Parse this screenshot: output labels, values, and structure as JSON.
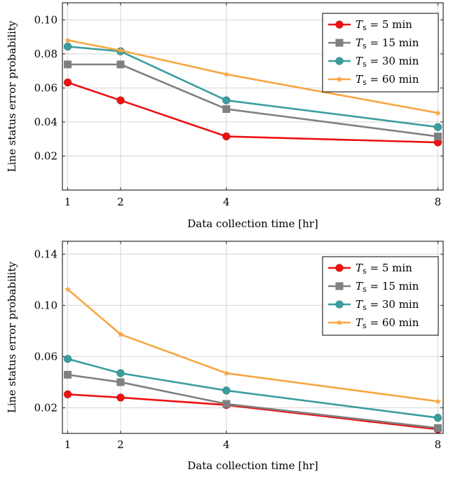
{
  "chart_data": [
    {
      "type": "line",
      "xlabel": "Data collection time [hr]",
      "ylabel": "Line status error probability",
      "xlim": [
        0.9,
        8.1
      ],
      "ylim": [
        0.0,
        0.11
      ],
      "x_ticks": [
        1,
        2,
        4,
        8
      ],
      "x_tick_labels": [
        "1",
        "2",
        "4",
        "8"
      ],
      "y_ticks": [
        0.02,
        0.04,
        0.06,
        0.08,
        0.1
      ],
      "y_tick_labels": [
        "0.02",
        "0.04",
        "0.06",
        "0.08",
        "0.10"
      ],
      "grid": true,
      "legend_position": "top-right",
      "x": [
        1,
        2,
        4,
        8
      ],
      "series": [
        {
          "name": "Ts = 5 min",
          "legend_var": "T",
          "legend_sub": "s",
          "legend_rest": " = 5 min",
          "color": "#ee1111",
          "marker": "circle",
          "values": [
            0.0632,
            0.0527,
            0.0315,
            0.028
          ]
        },
        {
          "name": "Ts = 15 min",
          "legend_var": "T",
          "legend_sub": "s",
          "legend_rest": " = 15 min",
          "color": "#808080",
          "marker": "square",
          "values": [
            0.0738,
            0.0738,
            0.0476,
            0.0315
          ]
        },
        {
          "name": "Ts = 30 min",
          "legend_var": "T",
          "legend_sub": "s",
          "legend_rest": " = 30 min",
          "color": "#3a9e9e",
          "marker": "circle",
          "values": [
            0.0843,
            0.0815,
            0.0527,
            0.037
          ]
        },
        {
          "name": "Ts = 60 min",
          "legend_var": "T",
          "legend_sub": "s",
          "legend_rest": " = 60 min",
          "color": "#f7a642",
          "marker": "star",
          "values": [
            0.088,
            0.082,
            0.068,
            0.0453
          ]
        }
      ]
    },
    {
      "type": "line",
      "xlabel": "Data collection time [hr]",
      "ylabel": "Line status error probability",
      "xlim": [
        0.9,
        8.1
      ],
      "ylim": [
        0.0,
        0.15
      ],
      "x_ticks": [
        1,
        2,
        4,
        8
      ],
      "x_tick_labels": [
        "1",
        "2",
        "4",
        "8"
      ],
      "y_ticks": [
        0.02,
        0.06,
        0.1,
        0.14
      ],
      "y_tick_labels": [
        "0.02",
        "0.06",
        "0.10",
        "0.14"
      ],
      "grid": true,
      "legend_position": "top-right",
      "x": [
        1,
        2,
        4,
        8
      ],
      "series": [
        {
          "name": "Ts = 5 min",
          "legend_var": "T",
          "legend_sub": "s",
          "legend_rest": " = 5 min",
          "color": "#ee1111",
          "marker": "circle",
          "values": [
            0.0305,
            0.028,
            0.0222,
            0.0032
          ]
        },
        {
          "name": "Ts = 15 min",
          "legend_var": "T",
          "legend_sub": "s",
          "legend_rest": " = 15 min",
          "color": "#808080",
          "marker": "square",
          "values": [
            0.0458,
            0.04,
            0.023,
            0.0042
          ]
        },
        {
          "name": "Ts = 30 min",
          "legend_var": "T",
          "legend_sub": "s",
          "legend_rest": " = 30 min",
          "color": "#3a9e9e",
          "marker": "circle",
          "values": [
            0.0582,
            0.047,
            0.0335,
            0.0122
          ]
        },
        {
          "name": "Ts = 60 min",
          "legend_var": "T",
          "legend_sub": "s",
          "legend_rest": " = 60 min",
          "color": "#f7a642",
          "marker": "star",
          "values": [
            0.1125,
            0.0773,
            0.047,
            0.025
          ]
        }
      ]
    }
  ]
}
